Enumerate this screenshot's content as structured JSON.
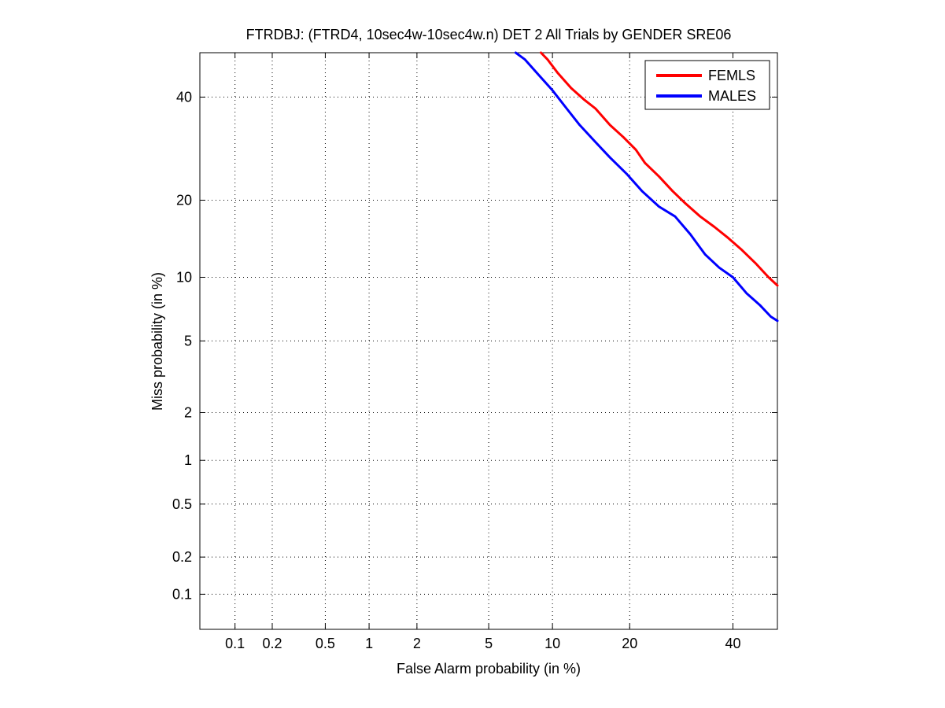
{
  "chart_data": {
    "type": "line",
    "title": "FTRDBJ: (FTRD4, 10sec4w-10sec4w.n) DET 2 All Trials by GENDER SRE06",
    "xlabel": "False Alarm probability (in %)",
    "ylabel": "Miss probability (in %)",
    "xscale": "normal-deviate",
    "yscale": "normal-deviate",
    "xlim": [
      0.05,
      50
    ],
    "ylim": [
      0.05,
      50
    ],
    "xticks": [
      0.1,
      0.2,
      0.5,
      1,
      2,
      5,
      10,
      20,
      40
    ],
    "xtick_labels": [
      "0.1",
      "0.2",
      "0.5",
      "1",
      "2",
      "5",
      "10",
      "20",
      "40"
    ],
    "yticks": [
      0.1,
      0.2,
      0.5,
      1,
      2,
      5,
      10,
      20,
      40
    ],
    "ytick_labels": [
      "0.1",
      "0.2",
      "0.5",
      "1",
      "2",
      "5",
      "10",
      "20",
      "40"
    ],
    "grid": true,
    "legend_position": "top-right",
    "series": [
      {
        "name": "FEMLS",
        "color": "#ff0000",
        "x": [
          8.9,
          9.5,
          10.5,
          12,
          13.5,
          15,
          17,
          19,
          21,
          22.5,
          25,
          27.5,
          30,
          33,
          36,
          39,
          42,
          45,
          48,
          50
        ],
        "y": [
          50,
          48.5,
          45.5,
          42,
          39.5,
          37.5,
          34,
          31.5,
          29,
          26.5,
          24,
          21.5,
          19.5,
          17.5,
          16,
          14.5,
          13,
          11.5,
          10,
          9.2
        ]
      },
      {
        "name": "MALES",
        "color": "#0000ff",
        "x": [
          6.8,
          7.5,
          8.5,
          10,
          11.5,
          13,
          15,
          17,
          19.5,
          22,
          25,
          28,
          31,
          34,
          37,
          40,
          43,
          46,
          48.5,
          50
        ],
        "y": [
          50,
          48.5,
          45.5,
          41.5,
          37.5,
          34,
          30.5,
          27.5,
          24.5,
          21.5,
          19,
          17.5,
          15,
          12.5,
          11,
          10,
          8.5,
          7.5,
          6.6,
          6.3
        ]
      }
    ]
  }
}
